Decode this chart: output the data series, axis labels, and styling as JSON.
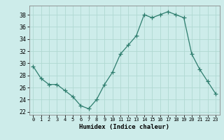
{
  "x": [
    0,
    1,
    2,
    3,
    4,
    5,
    6,
    7,
    8,
    9,
    10,
    11,
    12,
    13,
    14,
    15,
    16,
    17,
    18,
    19,
    20,
    21,
    22,
    23
  ],
  "y": [
    29.5,
    27.5,
    26.5,
    26.5,
    25.5,
    24.5,
    23.0,
    22.5,
    24.0,
    26.5,
    28.5,
    31.5,
    33.0,
    34.5,
    38.0,
    37.5,
    38.0,
    38.5,
    38.0,
    37.5,
    31.5,
    29.0,
    27.0,
    25.0
  ],
  "line_color": "#2e7d6e",
  "marker": "+",
  "marker_size": 4,
  "bg_color": "#cdecea",
  "grid_color": "#b0d8d2",
  "xlabel": "Humidex (Indice chaleur)",
  "ylabel_ticks": [
    22,
    24,
    26,
    28,
    30,
    32,
    34,
    36,
    38
  ],
  "xlim": [
    -0.5,
    23.5
  ],
  "ylim": [
    21.5,
    39.5
  ]
}
